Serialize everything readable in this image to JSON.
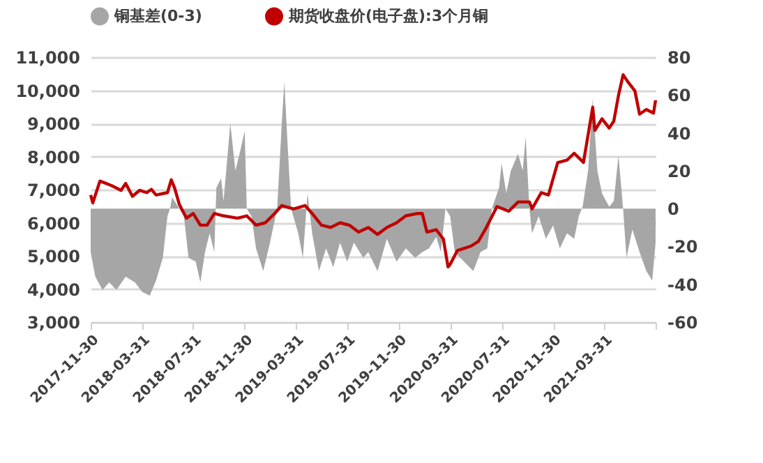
{
  "chart_data": {
    "type": "line",
    "legend": "top",
    "grid": "y",
    "xlim": [
      "2017-11-30",
      "2021-07-31"
    ],
    "xticks": [
      {
        "value": "2017-11-30",
        "label": "2017-11-30"
      },
      {
        "value": "2018-03-31",
        "label": "2018-03-31"
      },
      {
        "value": "2018-07-31",
        "label": "2018-07-31"
      },
      {
        "value": "2018-11-30",
        "label": "2018-11-30"
      },
      {
        "value": "2019-03-31",
        "label": "2019-03-31"
      },
      {
        "value": "2019-07-31",
        "label": "2019-07-31"
      },
      {
        "value": "2019-11-30",
        "label": "2019-11-30"
      },
      {
        "value": "2020-03-31",
        "label": "2020-03-31"
      },
      {
        "value": "2020-07-31",
        "label": "2020-07-31"
      },
      {
        "value": "2020-11-30",
        "label": "2020-11-30"
      },
      {
        "value": "2021-03-31",
        "label": "2021-03-31"
      },
      {
        "value": "2021-07-31",
        "label": null
      }
    ],
    "ylim": [
      3000,
      11000
    ],
    "yticks": [
      {
        "value": 3000,
        "label": "3,000"
      },
      {
        "value": 4000,
        "label": "4,000"
      },
      {
        "value": 5000,
        "label": "5,000"
      },
      {
        "value": 6000,
        "label": "6,000"
      },
      {
        "value": 7000,
        "label": "7,000"
      },
      {
        "value": 8000,
        "label": "8,000"
      },
      {
        "value": 9000,
        "label": "9,000"
      },
      {
        "value": 10000,
        "label": "10,000"
      },
      {
        "value": 11000,
        "label": "11,000"
      }
    ],
    "y2lim": [
      -60,
      80
    ],
    "y2ticks": [
      -60,
      -40,
      -20,
      0,
      20,
      40,
      60,
      80
    ],
    "series": [
      {
        "name": "铜基差(0-3)",
        "type": "area",
        "axis": "y2",
        "color": "#a6a6a6",
        "x": [
          "2017-11-30",
          "2017-12-11",
          "2017-12-28",
          "2018-01-13",
          "2018-01-30",
          "2018-02-21",
          "2018-03-15",
          "2018-04-01",
          "2018-04-19",
          "2018-05-04",
          "2018-05-20",
          "2018-05-31",
          "2018-06-06",
          "2018-06-11",
          "2018-06-28",
          "2018-07-09",
          "2018-07-20",
          "2018-08-06",
          "2018-08-17",
          "2018-08-28",
          "2018-09-08",
          "2018-09-19",
          "2018-09-24",
          "2018-10-05",
          "2018-10-11",
          "2018-10-27",
          "2018-11-08",
          "2018-11-19",
          "2018-11-30",
          "2018-12-05",
          "2018-12-16",
          "2018-12-27",
          "2019-01-13",
          "2019-01-29",
          "2019-02-15",
          "2019-02-26",
          "2019-03-04",
          "2019-03-12",
          "2019-03-20",
          "2019-04-06",
          "2019-04-17",
          "2019-04-28",
          "2019-05-09",
          "2019-05-25",
          "2019-06-11",
          "2019-06-28",
          "2019-07-14",
          "2019-07-31",
          "2019-08-16",
          "2019-09-07",
          "2019-09-19",
          "2019-10-11",
          "2019-11-02",
          "2019-11-25",
          "2019-12-17",
          "2020-01-08",
          "2020-01-25",
          "2020-02-10",
          "2020-02-27",
          "2020-03-09",
          "2020-03-20",
          "2020-03-31",
          "2020-04-11",
          "2020-05-03",
          "2020-05-25",
          "2020-06-11",
          "2020-06-27",
          "2020-07-08",
          "2020-07-25",
          "2020-07-31",
          "2020-08-11",
          "2020-08-22",
          "2020-09-08",
          "2020-09-19",
          "2020-09-26",
          "2020-10-05",
          "2020-10-11",
          "2020-10-27",
          "2020-11-13",
          "2020-11-30",
          "2020-12-16",
          "2021-01-02",
          "2021-01-19",
          "2021-01-30",
          "2021-02-08",
          "2021-02-21",
          "2021-03-04",
          "2021-03-15",
          "2021-03-26",
          "2021-04-12",
          "2021-04-23",
          "2021-05-04",
          "2021-05-15",
          "2021-05-23",
          "2021-06-06",
          "2021-06-23",
          "2021-07-09",
          "2021-07-23",
          "2021-07-31"
        ],
        "values": [
          -23,
          -36,
          -43,
          -39,
          -43,
          -36,
          -39,
          -44,
          -46,
          -38,
          -26,
          -4,
          0,
          6,
          0,
          -4,
          -26,
          -28,
          -39,
          -23,
          -13,
          -23,
          11,
          16,
          4,
          45,
          20,
          30,
          41,
          0,
          -4,
          -21,
          -33,
          -18,
          0,
          45,
          67,
          33,
          0,
          -13,
          -26,
          8,
          -13,
          -33,
          -21,
          -31,
          -18,
          -28,
          -18,
          -26,
          -23,
          -33,
          -16,
          -28,
          -21,
          -26,
          -23,
          -21,
          -15,
          -23,
          0,
          -4,
          -23,
          -28,
          -33,
          -23,
          -21,
          0,
          11,
          24,
          8,
          20,
          29,
          20,
          38,
          0,
          -13,
          -4,
          -16,
          -9,
          -21,
          -13,
          -16,
          -4,
          1,
          20,
          58,
          20,
          8,
          1,
          4,
          28,
          0,
          -26,
          -11,
          -23,
          -33,
          -38,
          -18
        ]
      },
      {
        "name": "期货收盘价(电子盘):3个月铜",
        "type": "line",
        "color": "#c00000",
        "x": [
          "2017-11-30",
          "2017-12-05",
          "2017-12-22",
          "2018-01-19",
          "2018-02-10",
          "2018-02-21",
          "2018-03-09",
          "2018-03-26",
          "2018-04-12",
          "2018-04-23",
          "2018-05-04",
          "2018-05-31",
          "2018-06-09",
          "2018-06-17",
          "2018-06-28",
          "2018-07-15",
          "2018-07-31",
          "2018-08-17",
          "2018-09-02",
          "2018-09-19",
          "2018-10-11",
          "2018-11-13",
          "2018-12-05",
          "2018-12-27",
          "2019-01-18",
          "2019-02-09",
          "2019-02-26",
          "2019-03-26",
          "2019-04-22",
          "2019-05-09",
          "2019-05-31",
          "2019-06-22",
          "2019-07-14",
          "2019-08-05",
          "2019-08-27",
          "2019-09-19",
          "2019-10-11",
          "2019-11-02",
          "2019-11-25",
          "2019-12-17",
          "2020-01-14",
          "2020-01-25",
          "2020-02-05",
          "2020-02-27",
          "2020-03-15",
          "2020-03-26",
          "2020-03-31",
          "2020-04-17",
          "2020-05-20",
          "2020-06-06",
          "2020-06-22",
          "2020-07-20",
          "2020-08-17",
          "2020-09-08",
          "2020-10-05",
          "2020-10-11",
          "2020-11-02",
          "2020-11-19",
          "2020-12-11",
          "2021-01-02",
          "2021-01-19",
          "2021-02-10",
          "2021-03-04",
          "2021-03-09",
          "2021-03-26",
          "2021-04-12",
          "2021-04-23",
          "2021-05-04",
          "2021-05-15",
          "2021-05-26",
          "2021-06-12",
          "2021-06-23",
          "2021-07-09",
          "2021-07-26",
          "2021-07-31"
        ],
        "values": [
          6840,
          6600,
          7260,
          7120,
          6980,
          7190,
          6800,
          6980,
          6910,
          7010,
          6840,
          6910,
          7300,
          7050,
          6560,
          6140,
          6280,
          5930,
          5930,
          6280,
          6210,
          6140,
          6210,
          5930,
          6000,
          6280,
          6520,
          6420,
          6520,
          6280,
          5930,
          5860,
          6000,
          5930,
          5720,
          5860,
          5650,
          5860,
          6000,
          6210,
          6280,
          6280,
          5720,
          5790,
          5510,
          4670,
          4740,
          5160,
          5300,
          5440,
          5790,
          6490,
          6350,
          6630,
          6630,
          6420,
          6910,
          6840,
          7820,
          7890,
          8100,
          7820,
          9490,
          8790,
          9140,
          8860,
          9070,
          9840,
          10470,
          10260,
          9980,
          9280,
          9420,
          9310,
          9700
        ]
      }
    ]
  }
}
